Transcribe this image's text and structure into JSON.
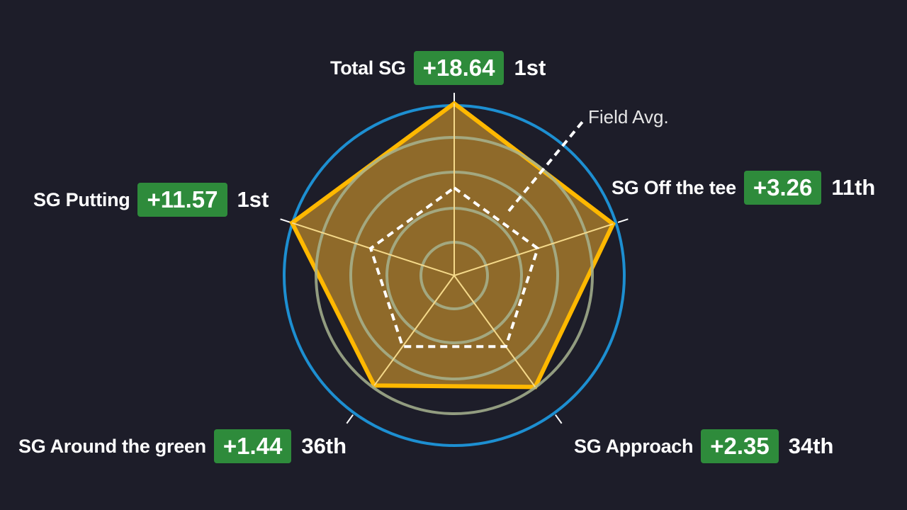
{
  "chart_data": {
    "type": "radar",
    "axes": [
      {
        "key": "total",
        "label": "Total SG",
        "value": "+18.64",
        "rank": "1st",
        "pct": 1.0
      },
      {
        "key": "ott",
        "label": "SG Off the tee",
        "value": "+3.26",
        "rank": "11th",
        "pct": 0.97
      },
      {
        "key": "app",
        "label": "SG Approach",
        "value": "+2.35",
        "rank": "34th",
        "pct": 0.8
      },
      {
        "key": "arg",
        "label": "SG Around the green",
        "value": "+1.44",
        "rank": "36th",
        "pct": 0.79
      },
      {
        "key": "putt",
        "label": "SG Putting",
        "value": "+11.57",
        "rank": "1st",
        "pct": 0.99
      }
    ],
    "field_avg": {
      "label": "Field Avg.",
      "pct": 0.51
    },
    "colors": {
      "background": "#1d1d29",
      "outer_ring": "#1d8fd1",
      "player_fill": "#8f6a2a",
      "player_stroke": "#ffb800",
      "grid_ring": "#a7b38f",
      "spoke": "#f5d98a",
      "badge": "#2e8b3b"
    }
  }
}
